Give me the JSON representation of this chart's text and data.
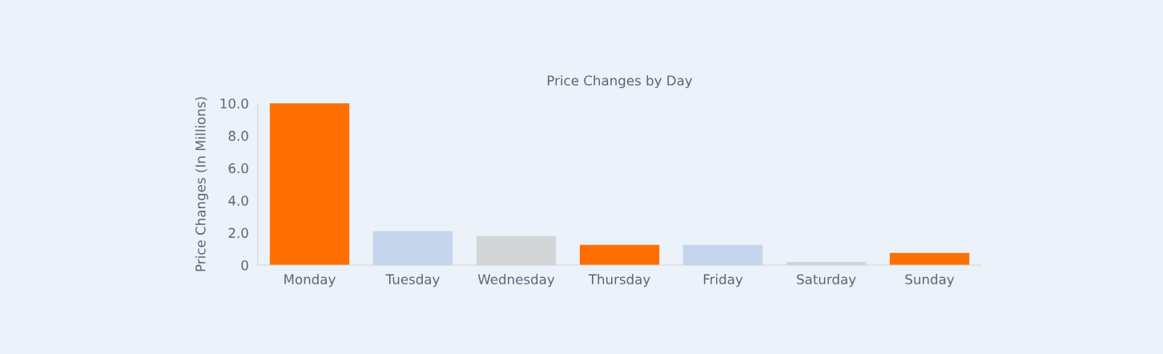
{
  "chart_data": {
    "type": "bar",
    "title": "Price Changes by Day",
    "ylabel": "Price Changes (In Millions)",
    "categories": [
      "Monday",
      "Tuesday",
      "Wednesday",
      "Thursday",
      "Friday",
      "Saturday",
      "Sunday"
    ],
    "values": [
      10.0,
      2.1,
      1.8,
      1.25,
      1.25,
      0.2,
      0.75
    ],
    "colors": [
      "#ff6f00",
      "#c5d5ec",
      "#d4d5d7",
      "#ff6f00",
      "#c5d5ec",
      "#d4d5d7",
      "#ff6f00"
    ],
    "ylim": [
      0,
      10.0
    ],
    "yticks": [
      {
        "value": 0,
        "label": "0"
      },
      {
        "value": 2,
        "label": "2.0"
      },
      {
        "value": 4,
        "label": "4.0"
      },
      {
        "value": 6,
        "label": "6.0"
      },
      {
        "value": 8,
        "label": "8.0"
      },
      {
        "value": 10,
        "label": "10.0"
      }
    ],
    "grid": false,
    "legend": false
  }
}
